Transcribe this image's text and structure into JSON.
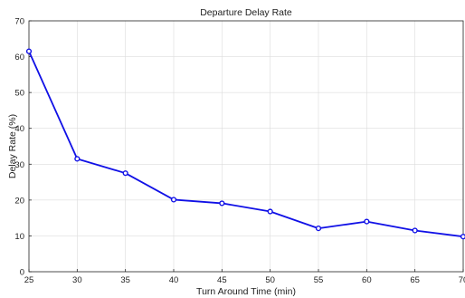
{
  "chart_data": {
    "type": "line",
    "title": "Departure Delay Rate",
    "xlabel": "Turn Around Time (min)",
    "ylabel": "Delay Rate (%)",
    "xlim": [
      25,
      70
    ],
    "ylim": [
      0,
      70
    ],
    "x_ticks": [
      "25",
      "30",
      "35",
      "40",
      "45",
      "50",
      "55",
      "60",
      "65",
      "70"
    ],
    "y_ticks": [
      "0",
      "10",
      "20",
      "30",
      "40",
      "50",
      "60",
      "70"
    ],
    "grid": true,
    "legend": "none",
    "series": [
      {
        "color": "#1010e6",
        "marker": "circle",
        "x": [
          25,
          30,
          35,
          40,
          45,
          50,
          55,
          60,
          65,
          70
        ],
        "y": [
          61.5,
          31.5,
          27.5,
          20.1,
          19.1,
          16.8,
          12.1,
          14.0,
          11.5,
          9.8
        ]
      }
    ]
  }
}
